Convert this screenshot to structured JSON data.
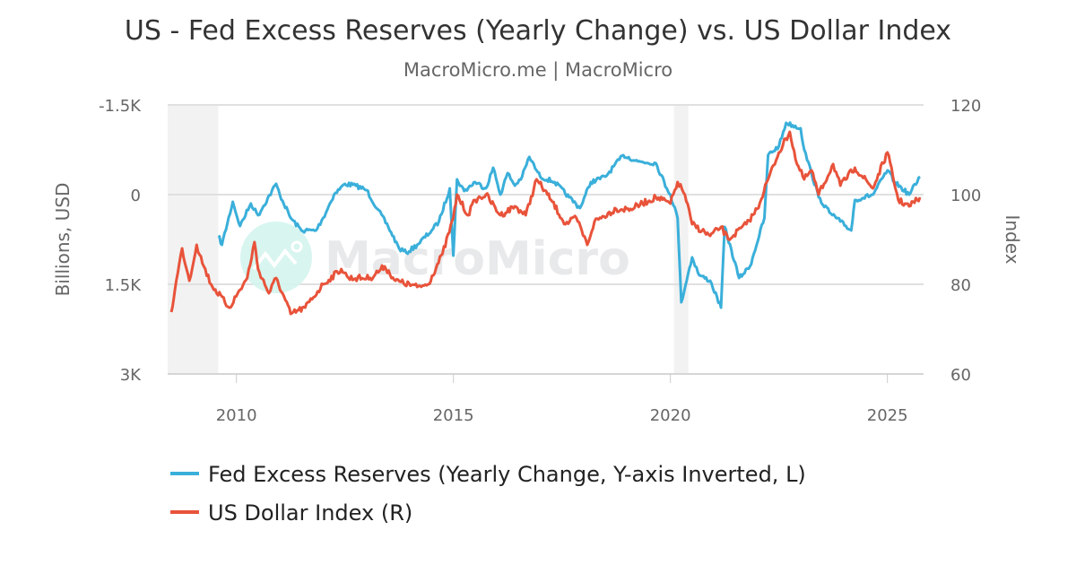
{
  "chart_data": {
    "type": "line",
    "title": "US - Fed Excess Reserves (Yearly Change) vs. US Dollar Index",
    "subtitle": "MacroMicro.me | MacroMicro",
    "watermark": "MacroMicro",
    "y_left": {
      "label": "Billions, USD",
      "range": [
        -1500,
        3000
      ],
      "inverted": true,
      "ticks": [
        -1500,
        0,
        1500,
        3000
      ],
      "tick_labels": [
        "-1.5K",
        "0",
        "1.5K",
        "3K"
      ]
    },
    "y_right": {
      "label": "Index",
      "range": [
        120,
        60
      ],
      "ticks": [
        120,
        100,
        80,
        60
      ],
      "tick_labels": [
        "120",
        "100",
        "80",
        "60"
      ]
    },
    "x": {
      "range": [
        "2008-06",
        "2025-11"
      ],
      "ticks": [
        "2010",
        "2015",
        "2020",
        "2025"
      ]
    },
    "grid": true,
    "legend_position": "bottom",
    "recessions": [
      [
        "2008-06",
        "2009-06"
      ],
      [
        "2020-02",
        "2020-04"
      ]
    ],
    "series": [
      {
        "name": "Fed Excess Reserves (Yearly Change, Y-axis Inverted, L)",
        "axis": "left",
        "color": "#3aafda",
        "points": [
          [
            "2009-08",
            690
          ],
          [
            "2009-09",
            840
          ],
          [
            "2009-12",
            120
          ],
          [
            "2010-02",
            525
          ],
          [
            "2010-05",
            150
          ],
          [
            "2010-07",
            345
          ],
          [
            "2010-12",
            -180
          ],
          [
            "2011-01",
            0
          ],
          [
            "2011-04",
            390
          ],
          [
            "2011-07",
            600
          ],
          [
            "2011-11",
            600
          ],
          [
            "2012-01",
            390
          ],
          [
            "2012-04",
            0
          ],
          [
            "2012-07",
            -180
          ],
          [
            "2012-10",
            -150
          ],
          [
            "2013-01",
            -75
          ],
          [
            "2013-04",
            240
          ],
          [
            "2013-07",
            540
          ],
          [
            "2013-10",
            900
          ],
          [
            "2013-12",
            975
          ],
          [
            "2014-03",
            840
          ],
          [
            "2014-07",
            600
          ],
          [
            "2014-09",
            450
          ],
          [
            "2014-12",
            -105
          ],
          [
            "2015-01",
            1020
          ],
          [
            "2015-02",
            -255
          ],
          [
            "2015-04",
            -60
          ],
          [
            "2015-07",
            -210
          ],
          [
            "2015-10",
            -105
          ],
          [
            "2015-12",
            -450
          ],
          [
            "2016-02",
            0
          ],
          [
            "2016-04",
            -360
          ],
          [
            "2016-06",
            -150
          ],
          [
            "2016-08",
            -300
          ],
          [
            "2016-10",
            -630
          ],
          [
            "2016-12",
            -405
          ],
          [
            "2017-01",
            -300
          ],
          [
            "2017-05",
            -210
          ],
          [
            "2017-09",
            45
          ],
          [
            "2017-12",
            225
          ],
          [
            "2018-03",
            -210
          ],
          [
            "2018-07",
            -300
          ],
          [
            "2018-12",
            -660
          ],
          [
            "2019-04",
            -555
          ],
          [
            "2019-09",
            -525
          ],
          [
            "2019-12",
            -105
          ],
          [
            "2020-01",
            0
          ],
          [
            "2020-03",
            390
          ],
          [
            "2020-04",
            1800
          ],
          [
            "2020-07",
            1050
          ],
          [
            "2020-09",
            1350
          ],
          [
            "2020-12",
            1440
          ],
          [
            "2021-03",
            1890
          ],
          [
            "2021-04",
            540
          ],
          [
            "2021-08",
            1395
          ],
          [
            "2021-11",
            1200
          ],
          [
            "2022-03",
            390
          ],
          [
            "2022-04",
            -660
          ],
          [
            "2022-07",
            -810
          ],
          [
            "2022-09",
            -1200
          ],
          [
            "2023-01",
            -1110
          ],
          [
            "2023-02",
            -750
          ],
          [
            "2023-04",
            -360
          ],
          [
            "2023-06",
            45
          ],
          [
            "2023-09",
            300
          ],
          [
            "2023-12",
            450
          ],
          [
            "2024-03",
            600
          ],
          [
            "2024-04",
            90
          ],
          [
            "2024-09",
            0
          ],
          [
            "2025-01",
            -405
          ],
          [
            "2025-03",
            -210
          ],
          [
            "2025-07",
            0
          ],
          [
            "2025-10",
            -300
          ]
        ]
      },
      {
        "name": "US Dollar Index (R)",
        "axis": "right",
        "color": "#e8533a",
        "points": [
          [
            "2008-07",
            73.8
          ],
          [
            "2008-08",
            78.8
          ],
          [
            "2008-10",
            88.0
          ],
          [
            "2008-12",
            80.8
          ],
          [
            "2009-02",
            88.8
          ],
          [
            "2009-04",
            84.0
          ],
          [
            "2009-06",
            80.0
          ],
          [
            "2009-11",
            74.8
          ],
          [
            "2010-04",
            81.4
          ],
          [
            "2010-06",
            89.4
          ],
          [
            "2010-07",
            83.4
          ],
          [
            "2010-10",
            78.0
          ],
          [
            "2010-12",
            81.4
          ],
          [
            "2011-04",
            73.4
          ],
          [
            "2011-08",
            74.8
          ],
          [
            "2012-01",
            80.0
          ],
          [
            "2012-06",
            83.4
          ],
          [
            "2012-08",
            81.4
          ],
          [
            "2013-02",
            81.4
          ],
          [
            "2013-06",
            84.0
          ],
          [
            "2013-09",
            80.8
          ],
          [
            "2014-03",
            79.4
          ],
          [
            "2014-06",
            80.0
          ],
          [
            "2014-10",
            86.8
          ],
          [
            "2015-01",
            94.8
          ],
          [
            "2015-02",
            100.0
          ],
          [
            "2015-05",
            95.4
          ],
          [
            "2015-07",
            98.8
          ],
          [
            "2015-10",
            100.0
          ],
          [
            "2016-02",
            95.4
          ],
          [
            "2016-06",
            97.4
          ],
          [
            "2016-09",
            95.4
          ],
          [
            "2016-12",
            103.4
          ],
          [
            "2017-03",
            100.0
          ],
          [
            "2017-04",
            98.8
          ],
          [
            "2017-08",
            93.4
          ],
          [
            "2017-11",
            94.8
          ],
          [
            "2018-02",
            88.8
          ],
          [
            "2018-04",
            94.0
          ],
          [
            "2018-10",
            96.8
          ],
          [
            "2019-02",
            96.8
          ],
          [
            "2019-09",
            99.4
          ],
          [
            "2020-01",
            98.0
          ],
          [
            "2020-03",
            102.8
          ],
          [
            "2020-05",
            100.0
          ],
          [
            "2020-07",
            93.4
          ],
          [
            "2020-12",
            90.8
          ],
          [
            "2021-03",
            92.8
          ],
          [
            "2021-05",
            90.0
          ],
          [
            "2021-10",
            93.4
          ],
          [
            "2022-01",
            96.8
          ],
          [
            "2022-04",
            103.4
          ],
          [
            "2022-07",
            109.4
          ],
          [
            "2022-10",
            114.0
          ],
          [
            "2022-12",
            106.8
          ],
          [
            "2023-02",
            103.4
          ],
          [
            "2023-04",
            105.4
          ],
          [
            "2023-06",
            100.0
          ],
          [
            "2023-10",
            106.8
          ],
          [
            "2023-12",
            102.0
          ],
          [
            "2024-04",
            106.0
          ],
          [
            "2024-09",
            101.4
          ],
          [
            "2025-01",
            109.4
          ],
          [
            "2025-04",
            98.8
          ],
          [
            "2025-07",
            97.4
          ],
          [
            "2025-10",
            99.4
          ]
        ]
      }
    ]
  }
}
